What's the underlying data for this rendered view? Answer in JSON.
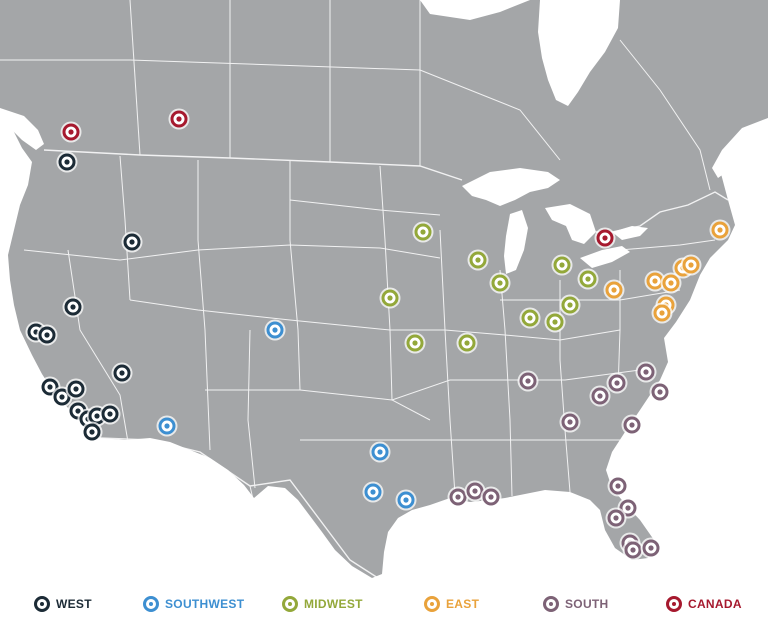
{
  "regions": [
    {
      "key": "west",
      "label": "WEST",
      "color": "#1c2b36"
    },
    {
      "key": "southwest",
      "label": "SOUTHWEST",
      "color": "#3d8fd1"
    },
    {
      "key": "midwest",
      "label": "MIDWEST",
      "color": "#93a83a"
    },
    {
      "key": "east",
      "label": "EAST",
      "color": "#e9a23b"
    },
    {
      "key": "south",
      "label": "SOUTH",
      "color": "#7d6276"
    },
    {
      "key": "canada",
      "label": "CANADA",
      "color": "#a6192e"
    }
  ],
  "map": {
    "land_color": "#a4a6a8",
    "water_color": "#ffffff",
    "border_color": "#ffffff",
    "icon": "location-ring-marker"
  }
}
